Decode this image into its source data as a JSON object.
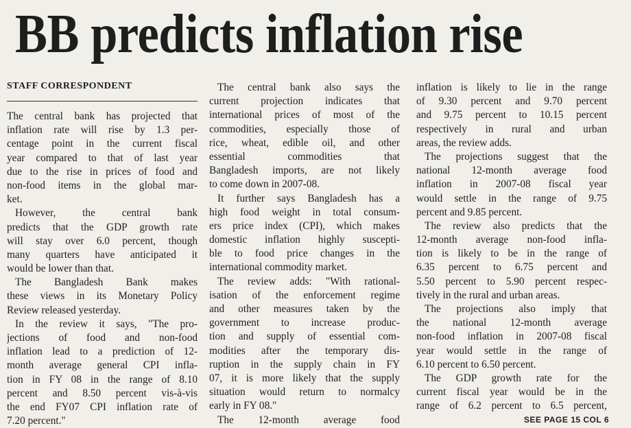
{
  "headline": "BB predicts inflation rise",
  "byline": "STAFF CORRESPONDENT",
  "columns": [
    {
      "paragraphs": [
        {
          "lines": [
            "The central bank has projected that",
            "inflation rate will rise by 1.3 per-",
            "centage point in the current fiscal",
            "year compared to that of last year",
            "due to the rise in prices of food and",
            "non-food items in the global mar-",
            "ket."
          ]
        },
        {
          "lines": [
            "However, the central bank",
            "predicts that the GDP growth rate",
            "will stay over 6.0 percent, though",
            "many quarters have anticipated it",
            "would be lower than that."
          ]
        },
        {
          "lines": [
            "The Bangladesh Bank makes",
            "these views in its Monetary Policy",
            "Review released yesterday."
          ]
        },
        {
          "lines": [
            "In the review it says, \"The pro-",
            "jections of food and non-food",
            "inflation lead to a prediction of 12-",
            "month average general CPI infla-",
            "tion in FY 08 in the range of 8.10",
            "percent and 8.50 percent vis-à-vis",
            "the end FY07 CPI inflation rate of",
            "7.20 percent.\""
          ]
        }
      ]
    },
    {
      "paragraphs": [
        {
          "lines": [
            "The central bank also says the",
            "current projection indicates that",
            "international prices of most of the",
            "commodities, especially those of",
            "rice, wheat, edible oil, and other",
            "essential commodities that",
            "Bangladesh imports, are not likely",
            "to come down in 2007-08."
          ]
        },
        {
          "lines": [
            "It further says Bangladesh has a",
            "high food weight in total consum-",
            "ers price index (CPI), which makes",
            "domestic inflation highly suscepti-",
            "ble to food price changes in the",
            "international commodity market."
          ]
        },
        {
          "lines": [
            "The review adds: \"With rational-",
            "isation of the enforcement regime",
            "and other measures taken by the",
            "government to increase produc-",
            "tion and supply of essential com-",
            "modities after the temporary dis-",
            "ruption in the supply chain in FY",
            "07, it is more likely that the supply",
            "situation would return to normalcy",
            "early in FY 08.\""
          ]
        },
        {
          "lines": [
            "The 12-month average food"
          ]
        }
      ]
    },
    {
      "paragraphs": [
        {
          "lines": [
            "inflation is likely to lie in the range",
            "of 9.30 percent and 9.70 percent",
            "and 9.75 percent to 10.15 percent",
            "respectively in rural and urban",
            "areas, the review adds."
          ]
        },
        {
          "lines": [
            "The projections suggest that the",
            "national 12-month average food",
            "inflation in 2007-08 fiscal year",
            "would settle in the range of 9.75",
            "percent and 9.85 percent."
          ]
        },
        {
          "lines": [
            "The review also predicts that the",
            "12-month average non-food infla-",
            "tion is likely to be in the range of",
            "6.35 percent to 6.75 percent and",
            "5.50 percent to 5.90 percent respec-",
            "tively in the rural and urban areas."
          ]
        },
        {
          "lines": [
            "The projections also imply that",
            "the national 12-month average",
            "non-food inflation in 2007-08 fiscal",
            "year would settle in the range of",
            "6.10 percent to 6.50 percent."
          ]
        },
        {
          "lines": [
            "The GDP growth rate for the",
            "current fiscal year would be in the",
            "range of 6.2 percent to 6.5 percent,"
          ]
        }
      ]
    }
  ],
  "footer": "SEE PAGE 15 COL 6"
}
